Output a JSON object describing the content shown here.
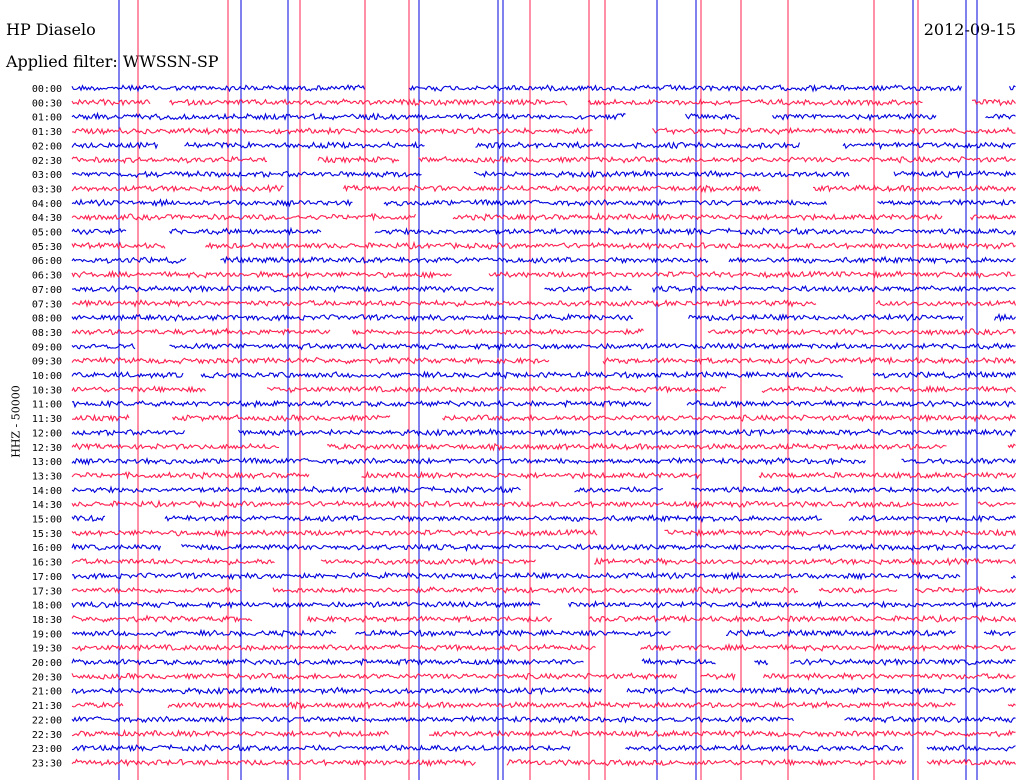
{
  "header": {
    "title": "HP Diaselo",
    "date": "2012-09-15",
    "filter": "Applied filter: WWSSN-SP",
    "ylabel": "HHZ - 50000"
  },
  "colors": {
    "trace_a": "#0000dd",
    "trace_b": "#ff2050"
  },
  "chart_data": {
    "type": "line",
    "title": "HP Diaselo",
    "subtitle": "Applied filter: WWSSN-SP",
    "ylabel": "HHZ - 50000",
    "xlabel": "",
    "row_labels": [
      "00:00",
      "00:30",
      "01:00",
      "01:30",
      "02:00",
      "02:30",
      "03:00",
      "03:30",
      "04:00",
      "04:30",
      "05:00",
      "05:30",
      "06:00",
      "06:30",
      "07:00",
      "07:30",
      "08:00",
      "08:30",
      "09:00",
      "09:30",
      "10:00",
      "10:30",
      "11:00",
      "11:30",
      "12:00",
      "12:30",
      "13:00",
      "13:30",
      "14:00",
      "14:30",
      "15:00",
      "15:30",
      "16:00",
      "16:30",
      "17:00",
      "17:30",
      "18:00",
      "18:30",
      "19:00",
      "19:30",
      "20:00",
      "20:30",
      "21:00",
      "21:30",
      "22:00",
      "22:30",
      "23:00",
      "23:30"
    ],
    "row_minutes": 30,
    "series": [
      {
        "color": "#0000dd",
        "rows": "even"
      },
      {
        "color": "#ff2050",
        "rows": "odd"
      }
    ],
    "grid": false
  }
}
